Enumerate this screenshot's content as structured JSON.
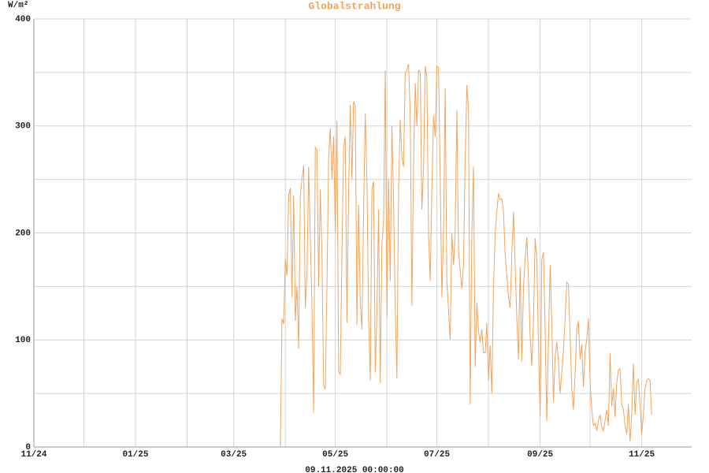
{
  "chart_data": {
    "type": "line",
    "title": "Globalstrahlung",
    "y_label": "W/m²",
    "x_label": "09.11.2025 00:00:00",
    "xlim": [
      0,
      395
    ],
    "xticks": [
      {
        "value": 0,
        "label": "11/24"
      },
      {
        "value": 61,
        "label": "01/25"
      },
      {
        "value": 120,
        "label": "03/25"
      },
      {
        "value": 181,
        "label": "05/25"
      },
      {
        "value": 242,
        "label": "07/25"
      },
      {
        "value": 304,
        "label": "09/25"
      },
      {
        "value": 365,
        "label": "11/25"
      }
    ],
    "xminor": [
      30,
      92,
      151,
      212,
      273,
      334
    ],
    "ylim": [
      0,
      400
    ],
    "yticks": [
      0,
      100,
      200,
      300,
      400
    ],
    "yminor": [
      50,
      150,
      250,
      350
    ],
    "grid": true,
    "series": [
      {
        "name": "Globalstrahlung",
        "color": "#f2a35e",
        "x": [
          148,
          149,
          150,
          151,
          152,
          153,
          154,
          155,
          156,
          157,
          158,
          159,
          160,
          161,
          162,
          163,
          164,
          165,
          166,
          167,
          168,
          169,
          170,
          171,
          172,
          173,
          174,
          175,
          176,
          177,
          178,
          179,
          180,
          181,
          182,
          183,
          184,
          185,
          186,
          187,
          188,
          189,
          190,
          191,
          192,
          193,
          194,
          195,
          196,
          197,
          198,
          199,
          200,
          201,
          202,
          203,
          204,
          205,
          206,
          207,
          208,
          209,
          210,
          211,
          212,
          213,
          214,
          215,
          216,
          217,
          218,
          219,
          220,
          221,
          222,
          223,
          224,
          225,
          226,
          227,
          228,
          229,
          230,
          231,
          232,
          233,
          234,
          235,
          236,
          237,
          238,
          239,
          240,
          241,
          242,
          243,
          244,
          245,
          246,
          247,
          248,
          249,
          250,
          251,
          252,
          253,
          254,
          255,
          256,
          257,
          258,
          259,
          260,
          261,
          262,
          263,
          264,
          265,
          266,
          267,
          268,
          269,
          270,
          271,
          272,
          273,
          274,
          275,
          276,
          277,
          278,
          279,
          280,
          281,
          282,
          283,
          284,
          285,
          286,
          287,
          288,
          289,
          290,
          291,
          292,
          293,
          294,
          295,
          296,
          297,
          298,
          299,
          300,
          301,
          302,
          303,
          304,
          305,
          306,
          307,
          308,
          309,
          310,
          311,
          312,
          313,
          314,
          315,
          316,
          317,
          318,
          319,
          320,
          321,
          322,
          323,
          324,
          325,
          326,
          327,
          328,
          329,
          330,
          331,
          332,
          333,
          334,
          335,
          336,
          337,
          338,
          339,
          340,
          341,
          342,
          343,
          344,
          345,
          346,
          347,
          348,
          349,
          350,
          351,
          352,
          353,
          354,
          355,
          356,
          357,
          358,
          359,
          360,
          361,
          362,
          363,
          364,
          365,
          366,
          367,
          368,
          369,
          370,
          371
        ],
        "values": [
          0,
          120,
          115,
          175,
          160,
          235,
          242,
          140,
          235,
          118,
          150,
          92,
          235,
          250,
          263,
          130,
          162,
          262,
          195,
          130,
          32,
          280,
          278,
          150,
          240,
          180,
          58,
          54,
          150,
          270,
          298,
          250,
          290,
          200,
          305,
          70,
          68,
          180,
          280,
          290,
          116,
          240,
          320,
          250,
          323,
          318,
          114,
          226,
          136,
          110,
          220,
          312,
          250,
          120,
          62,
          240,
          248,
          70,
          126,
          222,
          60,
          190,
          210,
          352,
          122,
          250,
          155,
          300,
          230,
          130,
          64,
          240,
          306,
          270,
          262,
          350,
          352,
          358,
          310,
          132,
          265,
          340,
          300,
          352,
          350,
          222,
          260,
          356,
          345,
          200,
          155,
          240,
          310,
          290,
          356,
          355,
          250,
          140,
          200,
          335,
          155,
          128,
          100,
          200,
          170,
          200,
          315,
          185,
          165,
          148,
          170,
          270,
          338,
          315,
          40,
          200,
          262,
          75,
          135,
          108,
          98,
          110,
          88,
          88,
          116,
          62,
          95,
          50,
          148,
          200,
          220,
          237,
          231,
          232,
          220,
          180,
          160,
          140,
          130,
          180,
          220,
          170,
          120,
          82,
          168,
          80,
          150,
          176,
          196,
          158,
          104,
          76,
          118,
          195,
          175,
          95,
          28,
          175,
          182,
          110,
          24,
          100,
          170,
          115,
          42,
          84,
          98,
          80,
          50,
          70,
          90,
          120,
          154,
          152,
          104,
          55,
          35,
          68,
          110,
          118,
          82,
          96,
          56,
          90,
          100,
          120,
          60,
          35,
          20,
          22,
          15,
          25,
          30,
          18,
          15,
          25,
          35,
          20,
          88,
          38,
          55,
          28,
          60,
          72,
          73,
          40,
          35,
          20,
          12,
          40,
          5,
          30,
          78,
          30,
          60,
          63,
          40,
          12,
          30,
          55,
          62,
          64,
          62,
          30
        ]
      }
    ]
  }
}
